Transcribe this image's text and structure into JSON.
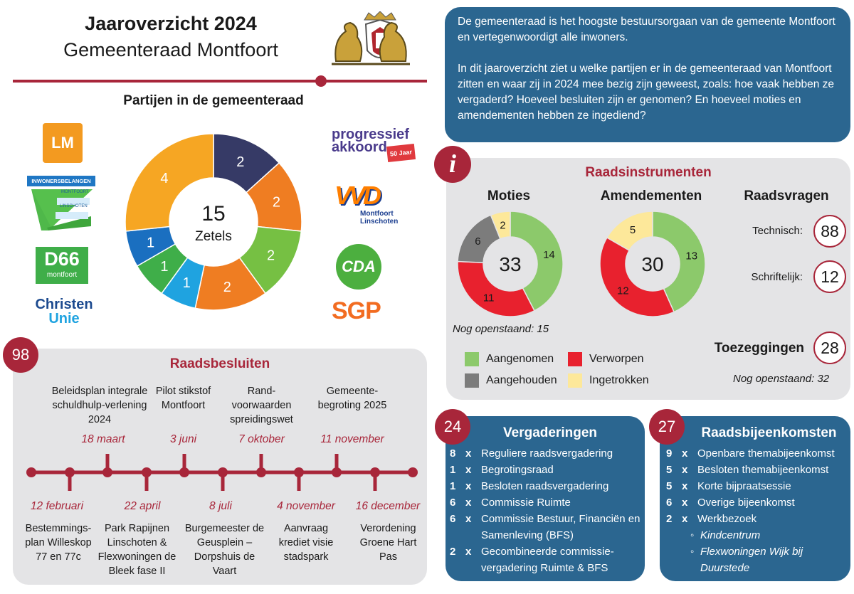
{
  "header": {
    "title": "Jaaroverzicht 2024",
    "subtitle": "Gemeenteraad Montfoort"
  },
  "intro": {
    "p1": "De gemeenteraad is het hoogste bestuursorgaan van de gemeente Montfoort en vertegenwoordigt alle inwoners.",
    "p2": "In dit jaaroverzicht ziet u welke partijen er in de gemeenteraad van Montfoort zitten en waar zij in 2024 mee bezig zijn geweest, zoals: hoe vaak hebben ze vergaderd? Hoeveel besluiten zijn er genomen? En hoeveel moties en amendementen hebben ze ingediend?"
  },
  "parties": {
    "heading": "Partijen in de gemeenteraad",
    "logos": {
      "lm": "LM",
      "inwonersbelangen": "INWONERSBELANGEN",
      "ib_sub1": "MONTFOORT",
      "ib_sub2": "LINSCHOTEN",
      "d66": "D66",
      "d66_sub": "montfoort",
      "cu1": "Christen",
      "cu2": "Unie",
      "pa1": "progressief",
      "pa2": "akkoord",
      "pa3": "50 Jaar",
      "vvd": "VVD",
      "vvd_sub1": "Montfoort",
      "vvd_sub2": "Linschoten",
      "cda": "CDA",
      "sgp": "SGP"
    }
  },
  "chart_data": [
    {
      "type": "pie",
      "title": "Partijen in de gemeenteraad",
      "center_value": "15",
      "center_label": "Zetels",
      "slices": [
        {
          "label": "Progressief Akkoord",
          "value": 2,
          "color": "#363a66"
        },
        {
          "label": "VVD",
          "value": 2,
          "color": "#ef7d22"
        },
        {
          "label": "CDA",
          "value": 2,
          "color": "#76c043"
        },
        {
          "label": "SGP",
          "value": 2,
          "color": "#ef7d22"
        },
        {
          "label": "ChristenUnie",
          "value": 1,
          "color": "#1fa3e0"
        },
        {
          "label": "D66",
          "value": 1,
          "color": "#3fae49"
        },
        {
          "label": "Inwonersbelangen",
          "value": 1,
          "color": "#1a6fc0"
        },
        {
          "label": "LM",
          "value": 4,
          "color": "#f6a623"
        }
      ]
    },
    {
      "type": "pie",
      "title": "Moties",
      "center_value": "33",
      "slices": [
        {
          "label": "Aangenomen",
          "value": 14,
          "color": "#8cc96b"
        },
        {
          "label": "Verworpen",
          "value": 11,
          "color": "#e8212e"
        },
        {
          "label": "Aangehouden",
          "value": 6,
          "color": "#7c7c7c"
        },
        {
          "label": "Ingetrokken",
          "value": 2,
          "color": "#fde89a"
        }
      ]
    },
    {
      "type": "pie",
      "title": "Amendementen",
      "center_value": "30",
      "slices": [
        {
          "label": "Aangenomen",
          "value": 13,
          "color": "#8cc96b"
        },
        {
          "label": "Verworpen",
          "value": 12,
          "color": "#e8212e"
        },
        {
          "label": "Ingetrokken",
          "value": 5,
          "color": "#fde89a"
        }
      ]
    }
  ],
  "raadsinstrumenten": {
    "icon": "i",
    "heading": "Raadsinstrumenten",
    "moties_title": "Moties",
    "amendementen_title": "Amendementen",
    "nog_openstaand_moties": "Nog openstaand: 15",
    "raadsvragen_title": "Raadsvragen",
    "technisch_label": "Technisch:",
    "technisch_value": "88",
    "schriftelijk_label": "Schriftelijk:",
    "schriftelijk_value": "12",
    "toezeggingen_label": "Toezeggingen",
    "toezeggingen_value": "28",
    "nog_openstaand_toez": "Nog openstaand: 32",
    "legend": {
      "aangenomen": "Aangenomen",
      "verworpen": "Verworpen",
      "aangehouden": "Aangehouden",
      "ingetrokken": "Ingetrokken"
    },
    "colors": {
      "aangenomen": "#8cc96b",
      "verworpen": "#e8212e",
      "aangehouden": "#7c7c7c",
      "ingetrokken": "#fde89a"
    }
  },
  "raadsbesluiten": {
    "count": "98",
    "heading": "Raadsbesluiten",
    "top": [
      {
        "label": "Beleidsplan integrale schuldhulp-verlening 2024",
        "date": "18 maart"
      },
      {
        "label": "Pilot stikstof Montfoort",
        "date": "3 juni"
      },
      {
        "label": "Rand-voorwaarden spreidingswet",
        "date": "7 oktober"
      },
      {
        "label": "Gemeente-begroting 2025",
        "date": "11 november"
      }
    ],
    "bottom": [
      {
        "label": "Bestemmings-plan Willeskop 77 en 77c",
        "date": "12 februari"
      },
      {
        "label": "Park Rapijnen Linschoten & Flexwoningen de Bleek fase II",
        "date": "22 april"
      },
      {
        "label": "Burgemeester de Geusplein – Dorpshuis de Vaart",
        "date": "8 juli"
      },
      {
        "label": "Aanvraag krediet visie stadspark",
        "date": "4 november"
      },
      {
        "label": "Verordening Groene Hart Pas",
        "date": "16 december"
      }
    ]
  },
  "vergaderingen": {
    "count": "24",
    "heading": "Vergaderingen",
    "items": [
      {
        "n": "8",
        "x": "x",
        "text": "Reguliere raadsvergadering"
      },
      {
        "n": "1",
        "x": "x",
        "text": "Begrotingsraad"
      },
      {
        "n": "1",
        "x": "x",
        "text": "Besloten raadsvergadering"
      },
      {
        "n": "6",
        "x": "x",
        "text": "Commissie Ruimte"
      },
      {
        "n": "6",
        "x": "x",
        "text": "Commissie Bestuur, Financiën en Samenleving (BFS)"
      },
      {
        "n": "2",
        "x": "x",
        "text": "Gecombineerde commissie-vergadering Ruimte & BFS"
      }
    ]
  },
  "raadsbijeenkomsten": {
    "count": "27",
    "heading": "Raadsbijeenkomsten",
    "items": [
      {
        "n": "9",
        "x": "x",
        "text": "Openbare themabijeenkomst"
      },
      {
        "n": "5",
        "x": "x",
        "text": "Besloten themabijeenkomst"
      },
      {
        "n": "5",
        "x": "x",
        "text": "Korte bijpraatsessie"
      },
      {
        "n": "6",
        "x": "x",
        "text": "Overige bijeenkomst"
      },
      {
        "n": "2",
        "x": "x",
        "text": "Werkbezoek"
      }
    ],
    "sub": [
      "Kindcentrum",
      "Flexwoningen Wijk bij Duurstede"
    ]
  }
}
